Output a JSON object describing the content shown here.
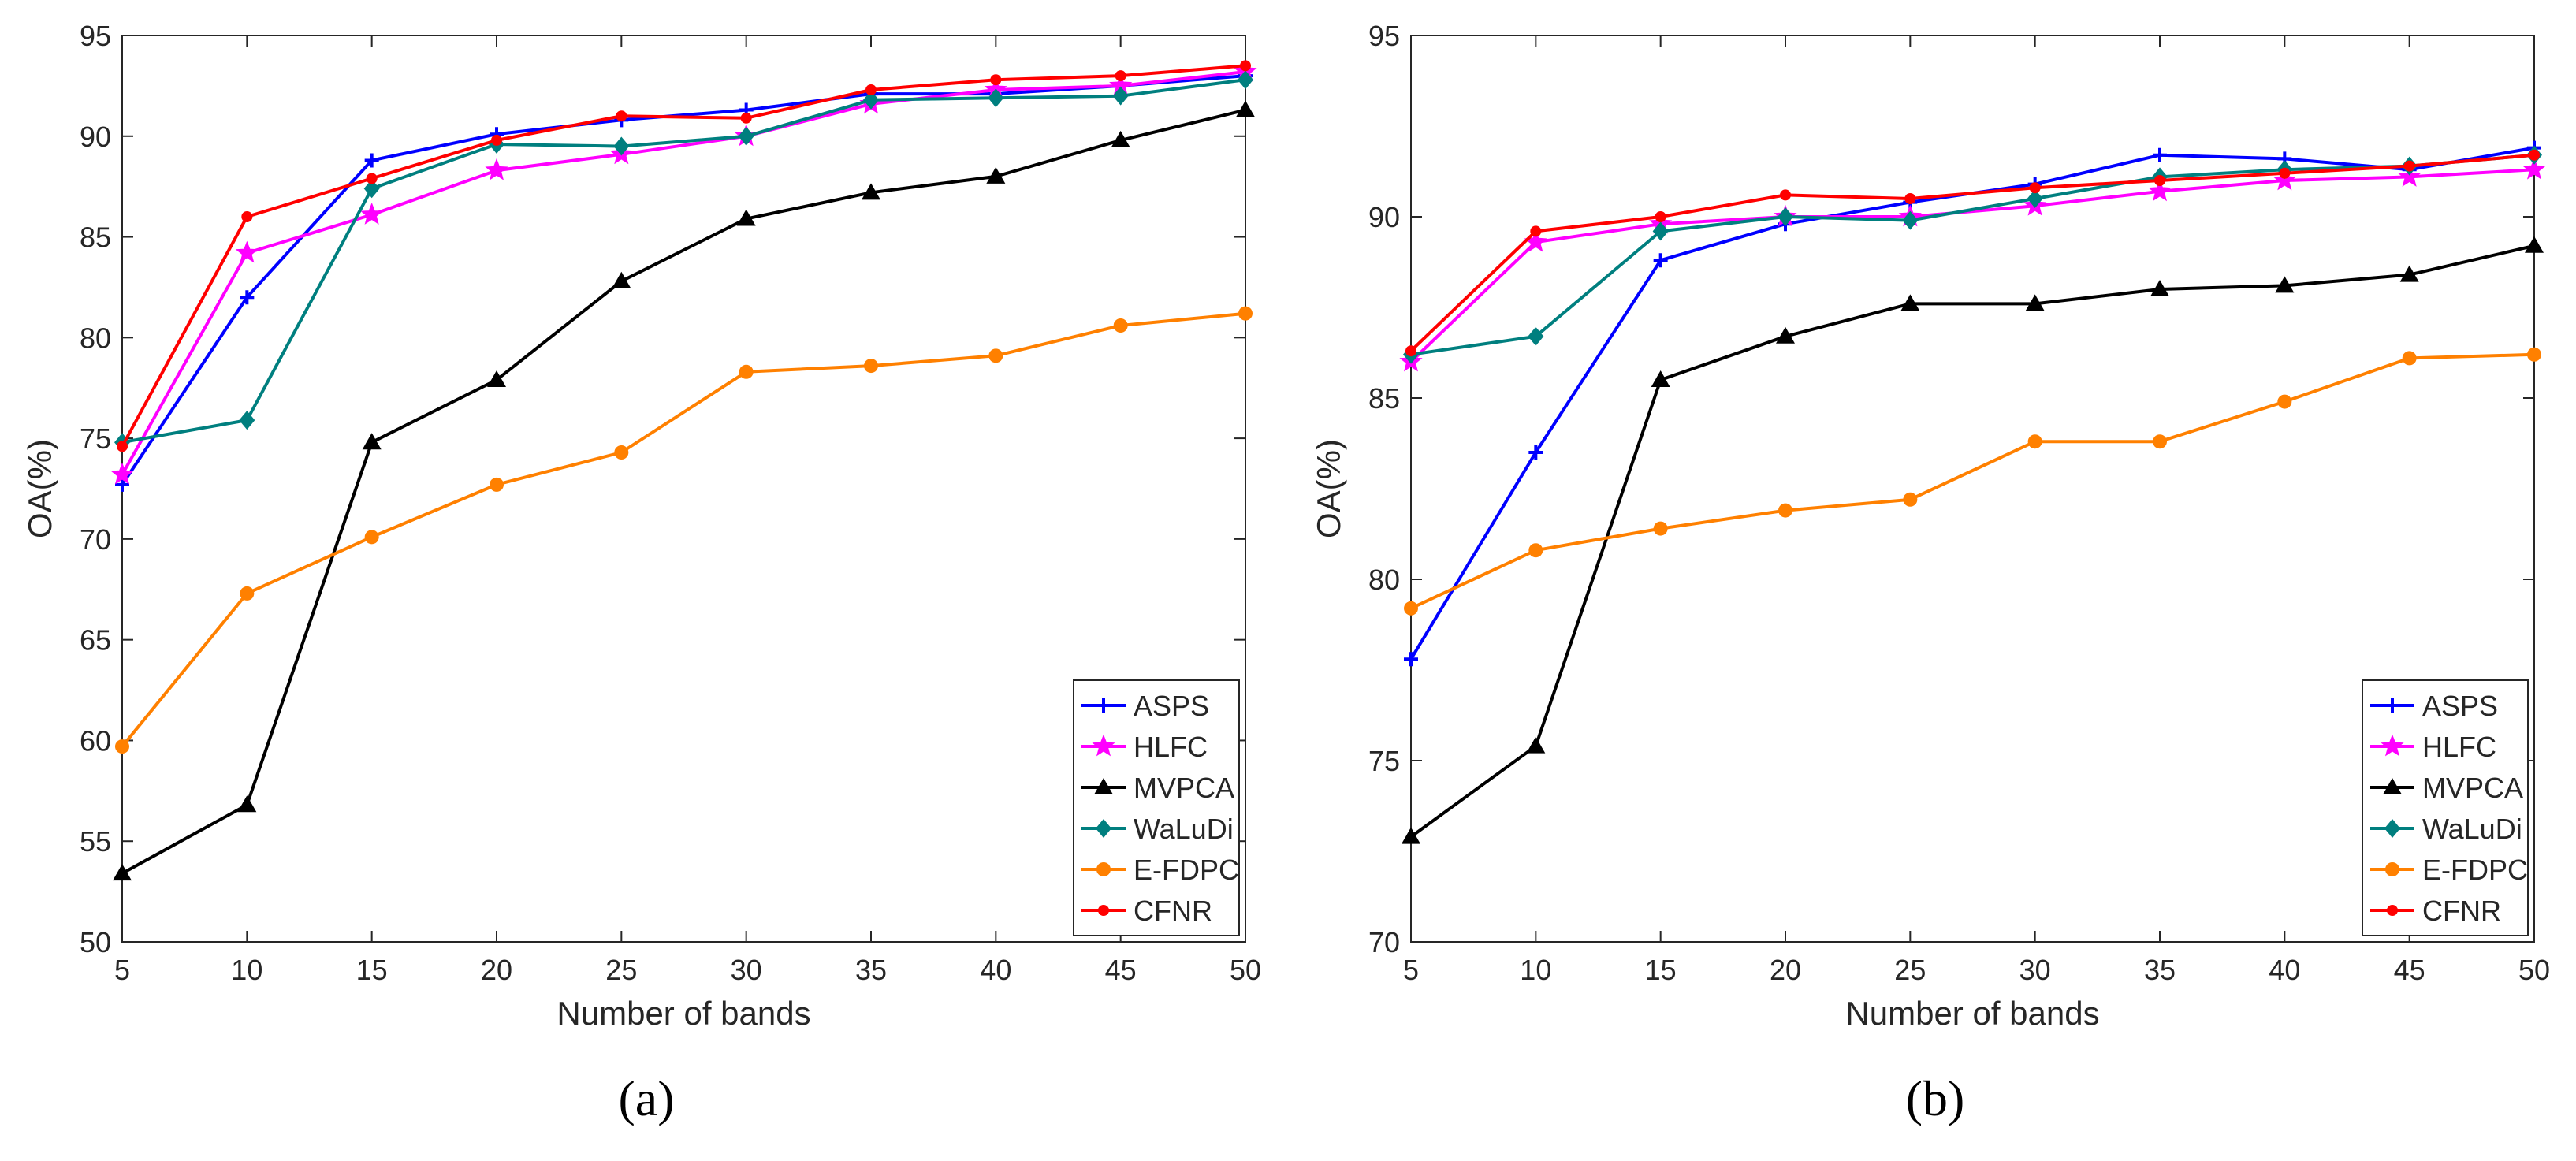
{
  "chart_data": [
    {
      "type": "line",
      "caption": "(a)",
      "xlabel": "Number of bands",
      "ylabel": "OA(%)",
      "x": [
        5,
        10,
        15,
        20,
        25,
        30,
        35,
        40,
        45,
        50
      ],
      "xticks": [
        5,
        10,
        15,
        20,
        25,
        30,
        35,
        40,
        45,
        50
      ],
      "xlim": [
        5,
        50
      ],
      "ylim": [
        50,
        95
      ],
      "yticks": [
        50,
        55,
        60,
        65,
        70,
        75,
        80,
        85,
        90,
        95
      ],
      "legend_position": "bottom-right",
      "grid": false,
      "series": [
        {
          "name": "ASPS",
          "color": "#0000ff",
          "marker": "plus",
          "values": [
            72.7,
            82.0,
            88.8,
            90.1,
            90.8,
            91.3,
            92.1,
            92.1,
            92.5,
            93.0
          ]
        },
        {
          "name": "HLFC",
          "color": "#ff00ff",
          "marker": "star",
          "values": [
            73.2,
            84.2,
            86.1,
            88.3,
            89.1,
            90.0,
            91.6,
            92.3,
            92.5,
            93.2
          ]
        },
        {
          "name": "MVPCA",
          "color": "#000000",
          "marker": "triangle",
          "values": [
            53.4,
            56.8,
            74.8,
            77.9,
            82.8,
            85.9,
            87.2,
            88.0,
            89.8,
            91.3
          ]
        },
        {
          "name": "WaLuDi",
          "color": "#007f7f",
          "marker": "diamond",
          "values": [
            74.8,
            75.9,
            87.4,
            89.6,
            89.5,
            90.0,
            91.8,
            91.9,
            92.0,
            92.8
          ]
        },
        {
          "name": "E-FDPC",
          "color": "#ff8000",
          "marker": "circle",
          "values": [
            59.7,
            67.3,
            70.1,
            72.7,
            74.3,
            78.3,
            78.6,
            79.1,
            80.6,
            81.2
          ]
        },
        {
          "name": "CFNR",
          "color": "#ff0000",
          "marker": "dot",
          "values": [
            74.6,
            86.0,
            87.9,
            89.8,
            91.0,
            90.9,
            92.3,
            92.8,
            93.0,
            93.5
          ]
        }
      ]
    },
    {
      "type": "line",
      "caption": "(b)",
      "xlabel": "Number of bands",
      "ylabel": "OA(%)",
      "x": [
        5,
        10,
        15,
        20,
        25,
        30,
        35,
        40,
        45,
        50
      ],
      "xticks": [
        5,
        10,
        15,
        20,
        25,
        30,
        35,
        40,
        45,
        50
      ],
      "xlim": [
        5,
        50
      ],
      "ylim": [
        70,
        95
      ],
      "yticks": [
        70,
        75,
        80,
        85,
        90,
        95
      ],
      "legend_position": "bottom-right",
      "grid": false,
      "series": [
        {
          "name": "ASPS",
          "color": "#0000ff",
          "marker": "plus",
          "values": [
            77.8,
            83.5,
            88.8,
            89.8,
            90.4,
            90.9,
            91.7,
            91.6,
            91.3,
            91.9
          ]
        },
        {
          "name": "HLFC",
          "color": "#ff00ff",
          "marker": "star",
          "values": [
            86.0,
            89.3,
            89.8,
            90.0,
            90.0,
            90.3,
            90.7,
            91.0,
            91.1,
            91.3
          ]
        },
        {
          "name": "MVPCA",
          "color": "#000000",
          "marker": "triangle",
          "values": [
            72.9,
            75.4,
            85.5,
            86.7,
            87.6,
            87.6,
            88.0,
            88.1,
            88.4,
            89.2
          ]
        },
        {
          "name": "WaLuDi",
          "color": "#007f7f",
          "marker": "diamond",
          "values": [
            86.2,
            86.7,
            89.6,
            90.0,
            89.9,
            90.5,
            91.1,
            91.3,
            91.4,
            91.7
          ]
        },
        {
          "name": "E-FDPC",
          "color": "#ff8000",
          "marker": "circle",
          "values": [
            79.2,
            80.8,
            81.4,
            81.9,
            82.2,
            83.8,
            83.8,
            84.9,
            86.1,
            86.2
          ]
        },
        {
          "name": "CFNR",
          "color": "#ff0000",
          "marker": "dot",
          "values": [
            86.3,
            89.6,
            90.0,
            90.6,
            90.5,
            90.8,
            91.0,
            91.2,
            91.4,
            91.7
          ]
        }
      ]
    }
  ]
}
